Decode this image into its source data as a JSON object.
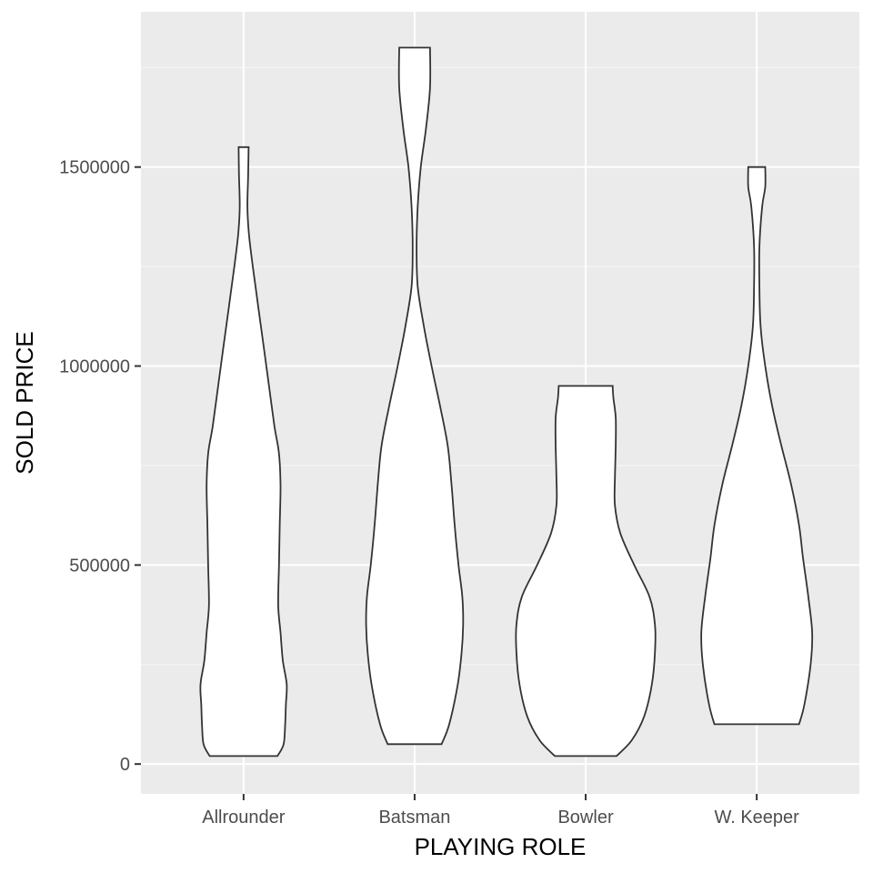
{
  "chart_data": {
    "type": "violin",
    "title": "",
    "xlabel": "PLAYING ROLE",
    "ylabel": "SOLD PRICE",
    "categories": [
      "Allrounder",
      "Batsman",
      "Bowler",
      "W. Keeper"
    ],
    "y_ticks": [
      0,
      500000,
      1000000,
      1500000
    ],
    "y_tick_labels": [
      "0",
      "500000",
      "1000000",
      "1500000"
    ],
    "ylim": [
      -75000,
      1890000
    ],
    "grid": true,
    "panel_background": "#ebebeb",
    "violins": [
      {
        "category": "Allrounder",
        "min": 20000,
        "max": 1550000,
        "width_profile": [
          [
            20000,
            0.44
          ],
          [
            50000,
            0.52
          ],
          [
            100000,
            0.54
          ],
          [
            150000,
            0.55
          ],
          [
            200000,
            0.56
          ],
          [
            260000,
            0.51
          ],
          [
            330000,
            0.48
          ],
          [
            400000,
            0.45
          ],
          [
            500000,
            0.46
          ],
          [
            600000,
            0.47
          ],
          [
            700000,
            0.48
          ],
          [
            780000,
            0.46
          ],
          [
            850000,
            0.4
          ],
          [
            950000,
            0.33
          ],
          [
            1050000,
            0.26
          ],
          [
            1150000,
            0.19
          ],
          [
            1250000,
            0.12
          ],
          [
            1330000,
            0.07
          ],
          [
            1400000,
            0.05
          ],
          [
            1480000,
            0.06
          ],
          [
            1550000,
            0.065
          ]
        ]
      },
      {
        "category": "Batsman",
        "min": 50000,
        "max": 1800000,
        "width_profile": [
          [
            50000,
            0.35
          ],
          [
            100000,
            0.45
          ],
          [
            200000,
            0.56
          ],
          [
            280000,
            0.61
          ],
          [
            350000,
            0.63
          ],
          [
            420000,
            0.62
          ],
          [
            500000,
            0.57
          ],
          [
            600000,
            0.52
          ],
          [
            700000,
            0.48
          ],
          [
            800000,
            0.43
          ],
          [
            900000,
            0.33
          ],
          [
            1000000,
            0.22
          ],
          [
            1100000,
            0.12
          ],
          [
            1200000,
            0.04
          ],
          [
            1300000,
            0.025
          ],
          [
            1400000,
            0.04
          ],
          [
            1500000,
            0.08
          ],
          [
            1600000,
            0.15
          ],
          [
            1700000,
            0.2
          ],
          [
            1800000,
            0.2
          ]
        ]
      },
      {
        "category": "Bowler",
        "min": 20000,
        "max": 950000,
        "width_profile": [
          [
            20000,
            0.4
          ],
          [
            60000,
            0.6
          ],
          [
            120000,
            0.76
          ],
          [
            200000,
            0.86
          ],
          [
            280000,
            0.9
          ],
          [
            350000,
            0.9
          ],
          [
            420000,
            0.83
          ],
          [
            500000,
            0.63
          ],
          [
            580000,
            0.45
          ],
          [
            650000,
            0.38
          ],
          [
            720000,
            0.38
          ],
          [
            800000,
            0.39
          ],
          [
            870000,
            0.39
          ],
          [
            920000,
            0.36
          ],
          [
            950000,
            0.35
          ]
        ]
      },
      {
        "category": "W. Keeper",
        "min": 100000,
        "max": 1500000,
        "width_profile": [
          [
            100000,
            0.55
          ],
          [
            150000,
            0.62
          ],
          [
            250000,
            0.7
          ],
          [
            330000,
            0.72
          ],
          [
            420000,
            0.67
          ],
          [
            520000,
            0.6
          ],
          [
            600000,
            0.55
          ],
          [
            700000,
            0.45
          ],
          [
            800000,
            0.32
          ],
          [
            900000,
            0.2
          ],
          [
            1000000,
            0.11
          ],
          [
            1100000,
            0.05
          ],
          [
            1200000,
            0.035
          ],
          [
            1300000,
            0.035
          ],
          [
            1400000,
            0.07
          ],
          [
            1450000,
            0.11
          ],
          [
            1500000,
            0.11
          ]
        ]
      }
    ]
  }
}
